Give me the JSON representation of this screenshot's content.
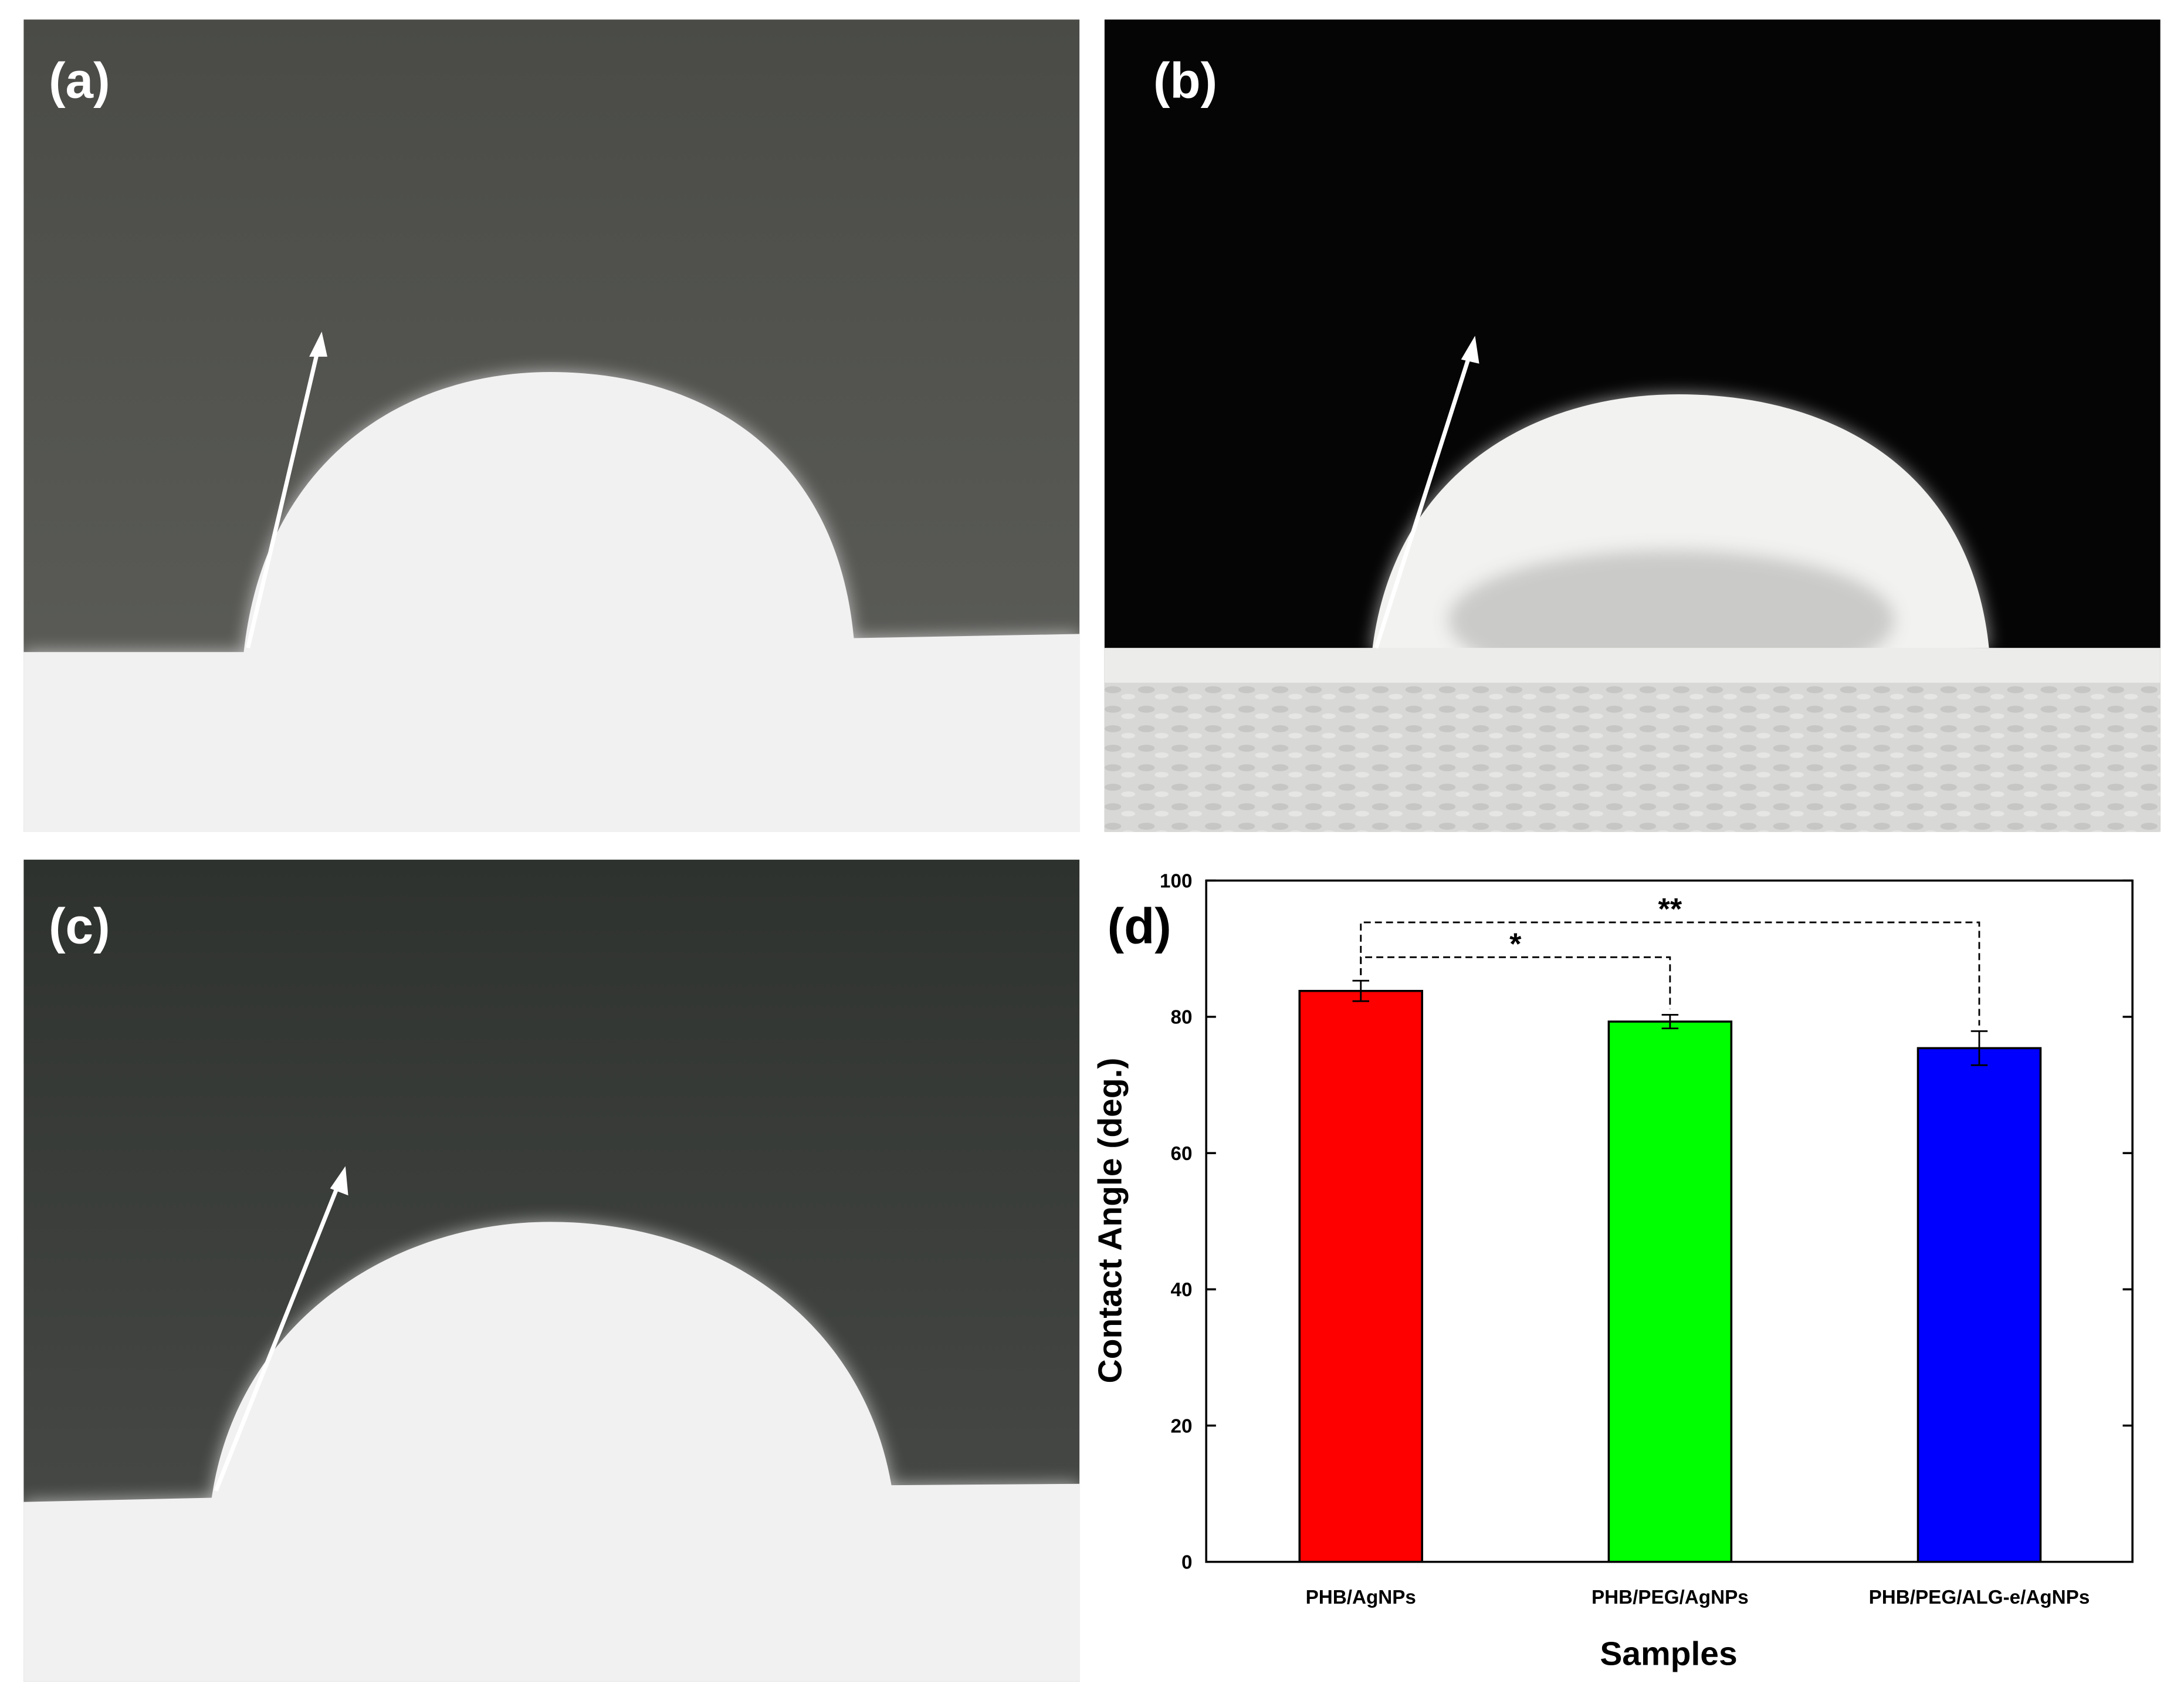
{
  "panels": [
    "(a)",
    "(b)",
    "(c)",
    "(d)"
  ],
  "chart_data": {
    "type": "bar",
    "xlabel": "Samples",
    "ylabel": "Contact Angle (deg.)",
    "categories": [
      "PHB/AgNPs",
      "PHB/PEG/AgNPs",
      "PHB/PEG/ALG-e/AgNPs"
    ],
    "values": [
      83.8,
      79.3,
      75.4
    ],
    "errors": [
      1.5,
      1.0,
      2.5
    ],
    "colors": [
      "#ff0000",
      "#00ff00",
      "#0000ff"
    ],
    "ylim": [
      0,
      100
    ],
    "yticks": [
      0,
      20,
      40,
      60,
      80,
      100
    ],
    "annotations": [
      "*",
      "**"
    ]
  }
}
